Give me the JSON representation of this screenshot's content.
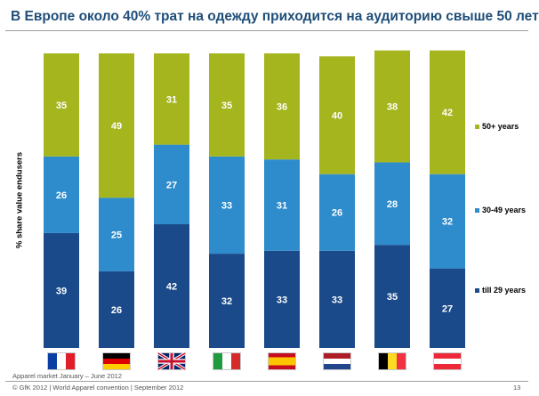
{
  "header": {
    "title": "В Европе около 40% трат на одежду приходится на аудиторию свыше 50 лет"
  },
  "chart_data": {
    "type": "bar",
    "stacked": true,
    "ylabel": "% share value endusers",
    "ylim": [
      0,
      100
    ],
    "categories": [
      "France",
      "Germany",
      "United Kingdom",
      "Italy",
      "Spain",
      "Netherlands",
      "Belgium",
      "Austria"
    ],
    "series": [
      {
        "name": "till 29 years",
        "color": "#1a4a8a",
        "values": [
          39,
          26,
          42,
          32,
          33,
          33,
          35,
          27
        ]
      },
      {
        "name": "30-49 years",
        "color": "#2e8bcc",
        "values": [
          26,
          25,
          27,
          33,
          31,
          26,
          28,
          32
        ]
      },
      {
        "name": "50+ years",
        "color": "#a4b51e",
        "values": [
          35,
          49,
          31,
          35,
          36,
          40,
          38,
          42
        ]
      }
    ],
    "legend": "right",
    "grid": false
  },
  "flags": [
    "fr-flag-icon",
    "de-flag-icon",
    "gb-flag-icon",
    "it-flag-icon",
    "es-flag-icon",
    "nl-flag-icon",
    "be-flag-icon",
    "at-flag-icon"
  ],
  "footer": {
    "source": "Apparel market January – June 2012",
    "copyright": "© GfK 2012 | World Apparel convention | September 2012",
    "page": "13"
  }
}
